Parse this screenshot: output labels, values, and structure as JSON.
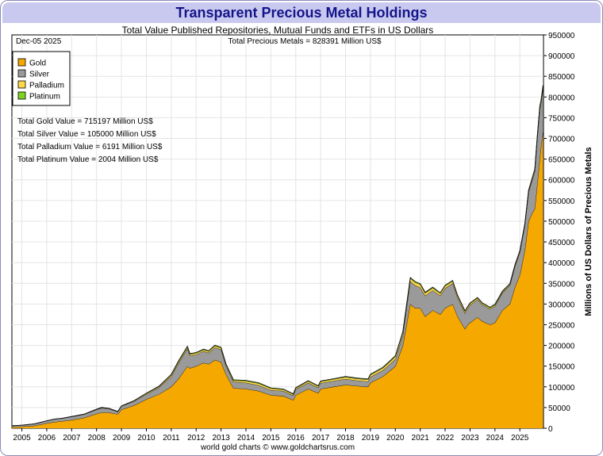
{
  "chart_data": {
    "type": "area",
    "title": "Transparent Precious Metal Holdings",
    "subtitle": "Total Value Published Repositories, Mutual Funds and ETFs in US Dollars",
    "date_label": "Dec-05  2025",
    "total_label": "Total Precious Metals = 828391 Million US$",
    "ylabel": "Millions of US Dollars of Precious Metals",
    "footer": "world gold charts © www.goldchartsrus.com",
    "xlim": [
      2004.6,
      2025.95
    ],
    "ylim": [
      0,
      950000
    ],
    "x_ticks": [
      "2005",
      "2006",
      "2007",
      "2008",
      "2009",
      "2010",
      "2011",
      "2012",
      "2013",
      "2014",
      "2015",
      "2016",
      "2017",
      "2018",
      "2019",
      "2020",
      "2021",
      "2022",
      "2023",
      "2024",
      "2025"
    ],
    "y_ticks": [
      "0",
      "50000",
      "100000",
      "150000",
      "200000",
      "250000",
      "300000",
      "350000",
      "400000",
      "450000",
      "500000",
      "550000",
      "600000",
      "650000",
      "700000",
      "750000",
      "800000",
      "850000",
      "900000",
      "950000"
    ],
    "legend": [
      {
        "name": "Gold",
        "color": "#f5a800"
      },
      {
        "name": "Silver",
        "color": "#9a9a9a"
      },
      {
        "name": "Palladium",
        "color": "#ffd74a"
      },
      {
        "name": "Platinum",
        "color": "#7ed321"
      }
    ],
    "value_labels": [
      "Total Gold Value = 715197 Million US$",
      "Total Silver Value = 105000 Million US$",
      "Total Palladium Value = 6191 Million US$",
      "Total Platinum Value = 2004 Million US$"
    ],
    "x": [
      2004.6,
      2005.0,
      2005.5,
      2006.0,
      2006.3,
      2006.6,
      2007.0,
      2007.5,
      2008.0,
      2008.2,
      2008.5,
      2008.85,
      2009.0,
      2009.5,
      2010.0,
      2010.5,
      2011.0,
      2011.3,
      2011.65,
      2011.75,
      2012.0,
      2012.3,
      2012.5,
      2012.75,
      2013.0,
      2013.2,
      2013.5,
      2014.0,
      2014.5,
      2015.0,
      2015.5,
      2015.9,
      2016.0,
      2016.5,
      2016.9,
      2017.0,
      2017.5,
      2018.0,
      2018.5,
      2018.9,
      2019.0,
      2019.5,
      2019.8,
      2020.0,
      2020.3,
      2020.6,
      2020.8,
      2021.0,
      2021.2,
      2021.5,
      2021.8,
      2022.0,
      2022.3,
      2022.5,
      2022.8,
      2022.9,
      2023.0,
      2023.3,
      2023.5,
      2023.8,
      2024.0,
      2024.3,
      2024.6,
      2024.8,
      2025.0,
      2025.2,
      2025.35,
      2025.5,
      2025.6,
      2025.7,
      2025.8,
      2025.85,
      2025.93
    ],
    "series": [
      {
        "name": "Gold",
        "values": [
          3000,
          4000,
          6000,
          12000,
          15000,
          17000,
          20000,
          25000,
          35000,
          38000,
          38000,
          34000,
          45000,
          55000,
          70000,
          82000,
          100000,
          120000,
          150000,
          145000,
          150000,
          158000,
          155000,
          165000,
          160000,
          130000,
          97000,
          95000,
          90000,
          80000,
          78000,
          68000,
          80000,
          95000,
          85000,
          95000,
          100000,
          105000,
          102000,
          100000,
          110000,
          125000,
          140000,
          150000,
          200000,
          300000,
          290000,
          290000,
          270000,
          285000,
          275000,
          290000,
          300000,
          270000,
          240000,
          250000,
          255000,
          268000,
          258000,
          250000,
          255000,
          285000,
          300000,
          340000,
          370000,
          430000,
          500000,
          520000,
          530000,
          590000,
          650000,
          680000,
          715197
        ]
      },
      {
        "name": "Silver",
        "values": [
          3000,
          3500,
          4500,
          6000,
          7000,
          7000,
          8000,
          8500,
          10000,
          11000,
          9000,
          6000,
          8000,
          10000,
          12000,
          16000,
          25000,
          38000,
          42000,
          30000,
          28000,
          28000,
          27000,
          30000,
          30000,
          20000,
          15000,
          15000,
          14000,
          12000,
          12000,
          11000,
          14000,
          15000,
          13000,
          14000,
          14000,
          14000,
          13000,
          13000,
          14000,
          15000,
          16000,
          17000,
          25000,
          55000,
          55000,
          50000,
          50000,
          48000,
          45000,
          48000,
          50000,
          45000,
          38000,
          38000,
          42000,
          43000,
          40000,
          38000,
          40000,
          42000,
          45000,
          50000,
          55000,
          60000,
          70000,
          80000,
          90000,
          110000,
          120000,
          105000,
          105000
        ]
      },
      {
        "name": "Palladium",
        "values": [
          0,
          0,
          0,
          0,
          0,
          0,
          200,
          400,
          800,
          900,
          800,
          500,
          800,
          1200,
          2000,
          2500,
          3500,
          4000,
          4000,
          3500,
          3500,
          3500,
          3500,
          4000,
          4000,
          3800,
          3500,
          4000,
          4500,
          4000,
          3500,
          3000,
          3000,
          3500,
          3500,
          3800,
          4000,
          4500,
          4500,
          4500,
          5000,
          5500,
          6000,
          6500,
          6500,
          7000,
          7000,
          7000,
          6500,
          6000,
          5500,
          5500,
          5200,
          4800,
          4200,
          4200,
          4000,
          3500,
          3200,
          3000,
          3000,
          2800,
          2800,
          2800,
          3000,
          3000,
          3500,
          4000,
          4500,
          5000,
          6000,
          6191,
          6191
        ]
      },
      {
        "name": "Platinum",
        "values": [
          0,
          0,
          0,
          0,
          0,
          0,
          100,
          200,
          300,
          400,
          300,
          200,
          300,
          500,
          800,
          1000,
          1500,
          1800,
          2000,
          1800,
          1700,
          1700,
          1700,
          1800,
          1800,
          1600,
          1500,
          1600,
          1700,
          1500,
          1400,
          1300,
          1300,
          1400,
          1400,
          1500,
          1500,
          1600,
          1600,
          1600,
          1700,
          1800,
          1900,
          2000,
          2000,
          2100,
          2100,
          2100,
          2000,
          2000,
          1900,
          1900,
          1800,
          1700,
          1600,
          1600,
          1600,
          1500,
          1500,
          1500,
          1500,
          1500,
          1500,
          1600,
          1700,
          1700,
          1800,
          1900,
          1900,
          2000,
          2000,
          2004,
          2004
        ]
      }
    ]
  }
}
